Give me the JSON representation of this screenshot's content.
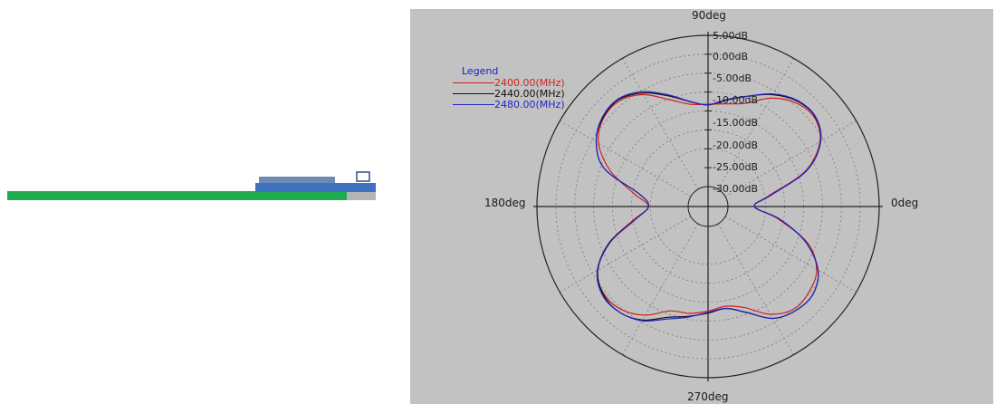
{
  "chart_data": {
    "type": "polar",
    "radial_unit": "dB",
    "radial_ticks": [
      "5.00dB",
      "0.00dB",
      "-5.00dB",
      "-10.00dB",
      "-15.00dB",
      "-20.00dB",
      "-25.00dB",
      "-30.00dB"
    ],
    "rlim": [
      -35,
      5
    ],
    "angle_labels": [
      "90deg",
      "180deg",
      "0deg",
      "270deg"
    ],
    "legend": {
      "title": "Legend",
      "placement": "top-left"
    },
    "angles_deg": [
      0,
      10,
      20,
      30,
      40,
      50,
      60,
      70,
      80,
      90,
      100,
      110,
      120,
      130,
      140,
      150,
      160,
      170,
      180,
      190,
      200,
      210,
      220,
      230,
      240,
      250,
      260,
      270,
      280,
      290,
      300,
      310,
      320,
      330,
      340,
      350
    ],
    "series": [
      {
        "name": "2400.00(MHz)",
        "color": "#d42020",
        "values": [
          -28,
          -24,
          -12.9,
          -6.1,
          -3.6,
          -4.4,
          -7.2,
          -11.2,
          -12.7,
          -13.2,
          -12.8,
          -10.2,
          -6.1,
          -3.8,
          -4.1,
          -6.8,
          -12.8,
          -20.3,
          -24.5,
          -20.3,
          -12.5,
          -6.4,
          -4.3,
          -4.7,
          -7.1,
          -10.9,
          -11.6,
          -12.6,
          -13.5,
          -11.8,
          -7.4,
          -4.9,
          -5.3,
          -7.1,
          -12.3,
          -21.5
        ]
      },
      {
        "name": "2440.00(MHz)",
        "color": "#101010",
        "values": [
          -28,
          -23.5,
          -12.5,
          -5.9,
          -3.3,
          -3.8,
          -6.1,
          -9.2,
          -11.7,
          -13.4,
          -12.1,
          -9.1,
          -5.6,
          -3.4,
          -3.9,
          -6.1,
          -11.1,
          -22.0,
          -24.5,
          -20.8,
          -12.5,
          -6.6,
          -4.1,
          -3.8,
          -5.6,
          -9.1,
          -10.8,
          -12.1,
          -12.9,
          -10.5,
          -6.1,
          -4.3,
          -4.1,
          -6.7,
          -12.8,
          -21.0
        ]
      },
      {
        "name": "2480.00(MHz)",
        "color": "#2424c4",
        "values": [
          -28,
          -23.5,
          -12.5,
          -5.9,
          -3.2,
          -3.6,
          -5.9,
          -9.2,
          -11.5,
          -13.4,
          -12.0,
          -8.8,
          -5.2,
          -3.2,
          -3.7,
          -6.1,
          -11.1,
          -22.0,
          -24.5,
          -20.8,
          -12.8,
          -6.5,
          -3.8,
          -3.8,
          -5.4,
          -8.6,
          -10.6,
          -12.3,
          -12.9,
          -10.4,
          -6.1,
          -4.3,
          -4.1,
          -6.7,
          -12.8,
          -21.0
        ]
      }
    ]
  },
  "side_view_colors": {
    "pcb": "#1faa50",
    "antenna": "#3d73c0",
    "chip": "#6f8bb3",
    "ground": "#b4b4b4",
    "component_outline": "#2b4f86"
  }
}
